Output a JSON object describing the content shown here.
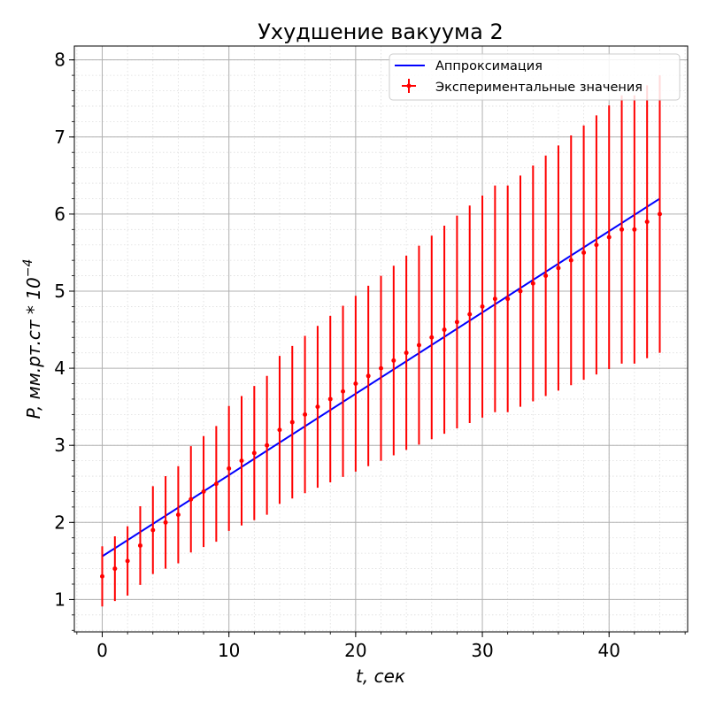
{
  "chart_data": {
    "type": "scatter",
    "title": "Ухудшение вакуума 2",
    "xlabel": "t, сек",
    "ylabel": "P, мм.рт.ст * 10",
    "ylabel_exponent": "−4",
    "xlim": [
      -2.2,
      46.2
    ],
    "ylim": [
      0.58,
      8.18
    ],
    "x_ticks": [
      0,
      10,
      20,
      30,
      40
    ],
    "y_ticks": [
      1,
      2,
      3,
      4,
      5,
      6,
      7,
      8
    ],
    "x_tick_labels": [
      "0",
      "10",
      "20",
      "30",
      "40"
    ],
    "y_tick_labels": [
      "1",
      "2",
      "3",
      "4",
      "5",
      "6",
      "7",
      "8"
    ],
    "x_minor_step": 2,
    "y_minor_step": 0.2,
    "grid": true,
    "legend_position": "top-right",
    "series": [
      {
        "name": "Аппроксимация",
        "kind": "line",
        "color": "#0000ff",
        "x": [
          0,
          44
        ],
        "y": [
          1.56,
          6.2
        ]
      },
      {
        "name": "Экспериментальные значения",
        "kind": "errorbar",
        "color": "#ff0000",
        "x": [
          0,
          1,
          2,
          3,
          4,
          5,
          6,
          7,
          8,
          9,
          10,
          11,
          12,
          13,
          14,
          15,
          16,
          17,
          18,
          19,
          20,
          21,
          22,
          23,
          24,
          25,
          26,
          27,
          28,
          29,
          30,
          31,
          32,
          33,
          34,
          35,
          36,
          37,
          38,
          39,
          40,
          41,
          42,
          43,
          44
        ],
        "y": [
          1.3,
          1.4,
          1.5,
          1.7,
          1.9,
          2.0,
          2.1,
          2.3,
          2.4,
          2.5,
          2.7,
          2.8,
          2.9,
          3.0,
          3.2,
          3.3,
          3.4,
          3.5,
          3.6,
          3.7,
          3.8,
          3.9,
          4.0,
          4.1,
          4.2,
          4.3,
          4.4,
          4.5,
          4.6,
          4.7,
          4.8,
          4.9,
          4.9,
          5.0,
          5.1,
          5.2,
          5.3,
          5.4,
          5.5,
          5.6,
          5.7,
          5.8,
          5.8,
          5.9,
          6.0
        ],
        "y_err": [
          0.39,
          0.42,
          0.45,
          0.51,
          0.57,
          0.6,
          0.63,
          0.69,
          0.72,
          0.75,
          0.81,
          0.84,
          0.87,
          0.9,
          0.96,
          0.99,
          1.02,
          1.05,
          1.08,
          1.11,
          1.14,
          1.17,
          1.2,
          1.23,
          1.26,
          1.29,
          1.32,
          1.35,
          1.38,
          1.41,
          1.44,
          1.47,
          1.47,
          1.5,
          1.53,
          1.56,
          1.59,
          1.62,
          1.65,
          1.68,
          1.71,
          1.74,
          1.74,
          1.77,
          1.8
        ]
      }
    ]
  }
}
